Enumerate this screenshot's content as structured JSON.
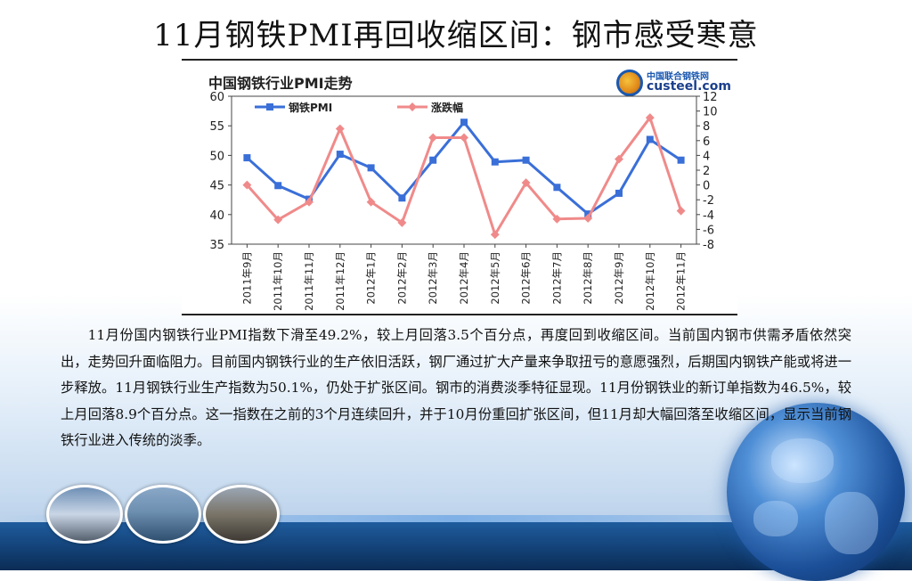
{
  "page": {
    "title": "11月钢铁PMI再回收缩区间：钢市感受寒意",
    "paragraph": "11月份国内钢铁行业PMI指数下滑至49.2%，较上月回落3.5个百分点，再度回到收缩区间。当前国内钢市供需矛盾依然突出，走势回升面临阻力。目前国内钢铁行业的生产依旧活跃，钢厂通过扩大产量来争取扭亏的意愿强烈，后期国内钢铁产能或将进一步释放。11月钢铁行业生产指数为50.1%，仍处于扩张区间。钢市的消费淡季特征显现。11月份钢铁业的新订单指数为46.5%，较上月回落8.9个百分点。这一指数在之前的3个月连续回升，并于10月份重回扩张区间，但11月却大幅回落至收缩区间，显示当前钢铁行业进入传统的淡季。"
  },
  "logo": {
    "cn": "中国联合钢铁网",
    "en": "custeel.com"
  },
  "chart_data": {
    "type": "line",
    "title": "中国钢铁行业PMI走势",
    "categories": [
      "2011年9月",
      "2011年10月",
      "2011年11月",
      "2011年12月",
      "2012年1月",
      "2012年2月",
      "2012年3月",
      "2012年4月",
      "2012年5月",
      "2012年6月",
      "2012年7月",
      "2012年8月",
      "2012年9月",
      "2012年10月",
      "2012年11月"
    ],
    "series": [
      {
        "name": "钢铁PMI",
        "axis": "left",
        "color": "#3a6fd8",
        "values": [
          49.6,
          44.9,
          42.6,
          50.2,
          47.9,
          42.8,
          49.2,
          55.6,
          48.9,
          49.2,
          44.6,
          40.1,
          43.6,
          52.7,
          49.2
        ]
      },
      {
        "name": "涨跌幅",
        "axis": "right",
        "color": "#f08a8a",
        "values": [
          0.0,
          -4.7,
          -2.3,
          7.6,
          -2.3,
          -5.1,
          6.4,
          6.4,
          -6.7,
          0.3,
          -4.6,
          -4.5,
          3.5,
          9.1,
          -3.5
        ]
      }
    ],
    "y_left": {
      "min": 35,
      "max": 60,
      "ticks": [
        60,
        55,
        50,
        45,
        40,
        35
      ]
    },
    "y_right": {
      "min": -8,
      "max": 12,
      "ticks": [
        12,
        10,
        8,
        6,
        4,
        2,
        0,
        -2,
        -4,
        -6,
        -8
      ]
    },
    "grid": false,
    "legend": "top"
  }
}
